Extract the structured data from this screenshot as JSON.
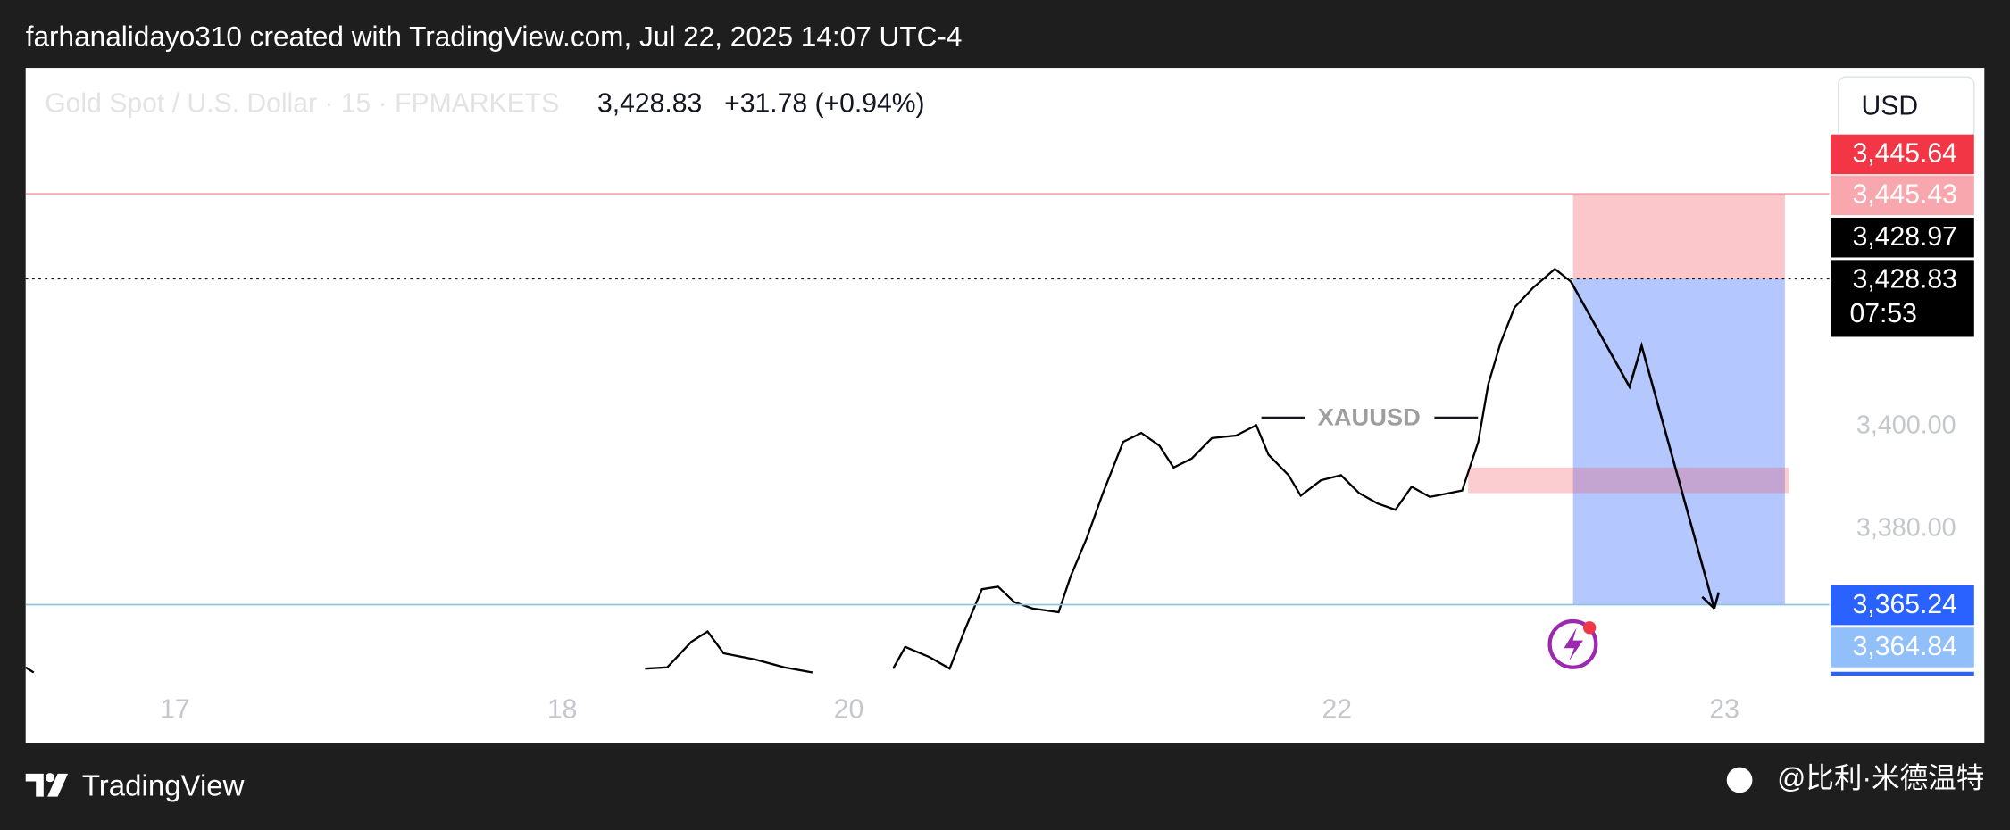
{
  "header": "farhanalidayo310 created with TradingView.com, Jul 22, 2025 14:07 UTC-4",
  "footer": {
    "brand": "TradingView",
    "credit": "@比利·米德温特"
  },
  "chart_data": {
    "type": "line",
    "symbol": "Gold Spot / U.S. Dollar · 15 · FPMARKETS",
    "last_price": "3,428.83",
    "change": "+31.78 (+0.94%)",
    "currency": "USD",
    "annotation": "XAUUSD",
    "x": [
      0,
      2,
      null,
      153.5,
      159,
      165,
      169,
      173,
      181,
      188,
      195,
      null,
      215,
      218,
      224,
      229,
      233,
      237,
      241,
      245,
      249.5,
      256,
      259,
      263,
      267,
      272,
      276.5,
      281,
      284.5,
      289,
      294,
      300,
      305,
      308,
      313,
      316,
      321,
      326,
      330.5,
      335,
      339.5,
      343.5,
      348,
      356,
      360,
      362.5,
      365.5,
      369,
      373.5,
      379,
      383
    ],
    "series": [
      {
        "color": "#000000",
        "values": [
          3353,
          3352,
          null,
          3352.75,
          3353,
          3358,
          3360,
          3355.75,
          3354.5,
          3353,
          3352,
          null,
          3352.75,
          3357,
          3355,
          3352.75,
          3360.75,
          3368.25,
          3368.75,
          3365.75,
          3364.5,
          3363.75,
          3370.75,
          3378.25,
          3387,
          3397,
          3398.75,
          3396.25,
          3392,
          3393.75,
          3397.75,
          3398.25,
          3400.25,
          3394.5,
          3390.5,
          3386.5,
          3389.5,
          3390.5,
          3387,
          3385,
          3383.75,
          3388.25,
          3386.25,
          3387.5,
          3397,
          3408.25,
          3416.25,
          3423.25,
          3427,
          3430.75,
          3428.25
        ]
      }
    ],
    "projection": {
      "x": [
        383,
        397.5,
        400.5,
        418.5
      ],
      "values": [
        3428.25,
        3407.75,
        3415.75,
        3364.5
      ],
      "color": "#000000"
    },
    "position": {
      "x": [
        383.5,
        436
      ],
      "stop": 3445.43,
      "entry": 3428.83,
      "target": 3365.24
    },
    "zone": {
      "x": [
        357.5,
        437
      ],
      "values": [
        3392,
        3387
      ]
    },
    "hlines": [
      {
        "value": 3445.43,
        "color": "#f4a7b1"
      },
      {
        "value": 3365.24,
        "color": "#8cc6e3"
      }
    ],
    "price_labels": [
      {
        "value": 3445.64,
        "label": "3,445.64",
        "color": "#f23645"
      },
      {
        "value": 3445.43,
        "label": "3,445.43",
        "color": "#f7a7ad"
      },
      {
        "value": 3428.97,
        "label": "3,428.97",
        "color": "#000000"
      },
      {
        "value": 3428.83,
        "label": "3,428.83",
        "color": "#000000",
        "countdown": "07:53"
      },
      {
        "value": 3365.24,
        "label": "3,365.24",
        "color": "#2962ff"
      },
      {
        "value": 3364.84,
        "label": "3,364.84",
        "color": "#90bff9"
      }
    ],
    "xlim": [
      0,
      447
    ],
    "xticks": [
      {
        "value": 37,
        "label": "17"
      },
      {
        "value": 133,
        "label": "18"
      },
      {
        "value": 204,
        "label": "20"
      },
      {
        "value": 325,
        "label": "22"
      },
      {
        "value": 421,
        "label": "23"
      }
    ],
    "ylim": [
      3351.5,
      3470
    ],
    "yticks": [
      {
        "value": 3400,
        "label": "3,400.00"
      },
      {
        "value": 3380,
        "label": "3,380.00"
      }
    ]
  }
}
